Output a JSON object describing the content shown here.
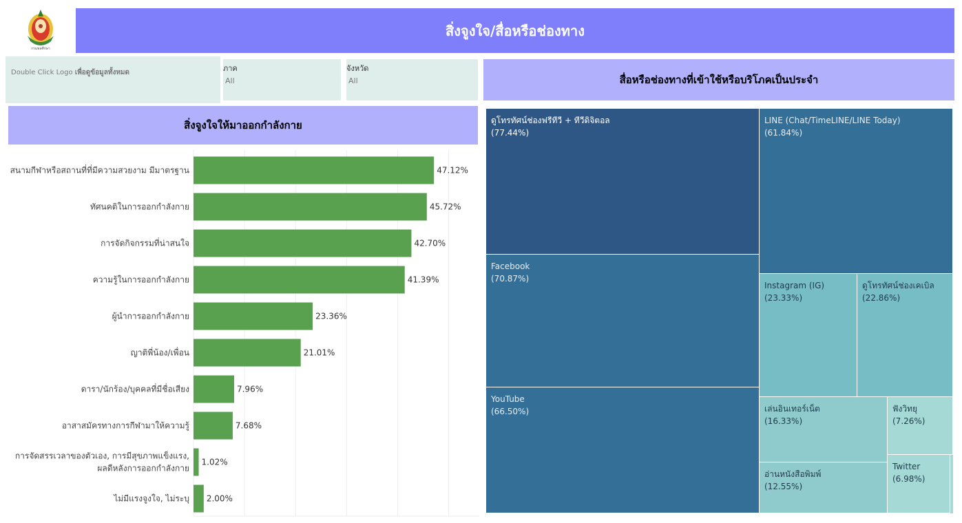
{
  "header": {
    "title": "สิ่งจูงใจ/สื่อหรือช่องทาง"
  },
  "logo": {
    "name": "department-emblem-icon",
    "caption": "กรมพลศึกษา"
  },
  "hint": {
    "prefix": "Double Click Logo ",
    "suffix": "เพื่อดูข้อมูลทั้งหมด"
  },
  "filters": {
    "region": {
      "label": "ภาค",
      "value": "All"
    },
    "province": {
      "label": "จังหวัด",
      "value": "All"
    }
  },
  "colors": {
    "header": "#7f7ffc",
    "section": "#b0b0fc",
    "filter_bg": "#dfeeea",
    "bar": "#59a14f",
    "tm_dark": "#2e5786",
    "tm_mid": "#346f98",
    "tm_teal": "#76bdc6",
    "tm_light": "#8fcacd",
    "tm_lightest": "#a5d9d5"
  },
  "chart_data": [
    {
      "type": "bar",
      "orientation": "horizontal",
      "title": "สิ่งจูงใจให้มาออกกำลังกาย",
      "categories": [
        "สนามกีฬาหรือสถานที่ที่มีความสวยงาม มีมาตรฐาน",
        "ทัศนคติในการออกกำลังกาย",
        "การจัดกิจกรรมที่น่าสนใจ",
        "ความรู้ในการออกกำลังกาย",
        "ผู้นำการออกกำลังกาย",
        "ญาติพี่น้อง/เพื่อน",
        "ดารา/นักร้อง/บุคคลที่มีชื่อเสียง",
        "อาสาสมัครทางการกีฬามาให้ความรู้",
        "การจัดสรรเวลาของตัวเอง, การมีสุขภาพแข็งแรง, ผลดีหลังการออกกำลังกาย",
        "ไม่มีแรงจูงใจ, ไม่ระบุ"
      ],
      "values": [
        47.12,
        45.72,
        42.7,
        41.39,
        23.36,
        21.01,
        7.96,
        7.68,
        1.02,
        2.0
      ],
      "labels": [
        "47.12%",
        "45.72%",
        "42.70%",
        "41.39%",
        "23.36%",
        "21.01%",
        "7.96%",
        "7.68%",
        "1.02%",
        "2.00%"
      ],
      "xlim": [
        0,
        56
      ],
      "grid": true
    },
    {
      "type": "treemap",
      "title": "สื่อหรือช่องทางที่เข้าใช้หรือบริโภคเป็นประจำ",
      "items": [
        {
          "name": "ดูโทรทัศน์ช่องฟรีทีวี + ทีวีดิจิตอล",
          "value": 77.44,
          "pct": "(77.44%)"
        },
        {
          "name": "Facebook",
          "value": 70.87,
          "pct": "(70.87%)"
        },
        {
          "name": "YouTube",
          "value": 66.5,
          "pct": "(66.50%)"
        },
        {
          "name": "LINE (Chat/TimeLINE/LINE Today)",
          "value": 61.84,
          "pct": "(61.84%)"
        },
        {
          "name": "Instagram (IG)",
          "value": 23.33,
          "pct": "(23.33%)"
        },
        {
          "name": "ดูโทรทัศน์ช่องเคเบิล",
          "value": 22.86,
          "pct": "(22.86%)"
        },
        {
          "name": "เล่นอินเทอร์เน็ต",
          "value": 16.33,
          "pct": "(16.33%)"
        },
        {
          "name": "อ่านหนังสือพิมพ์",
          "value": 12.55,
          "pct": "(12.55%)"
        },
        {
          "name": "ฟังวิทยุ",
          "value": 7.26,
          "pct": "(7.26%)"
        },
        {
          "name": "Twitter",
          "value": 6.98,
          "pct": "(6.98%)"
        }
      ]
    }
  ]
}
